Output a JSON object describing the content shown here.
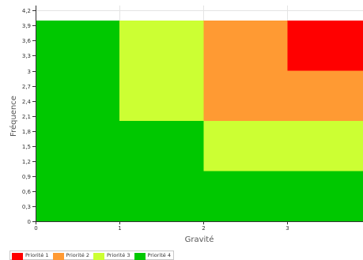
{
  "chart_data": {
    "type": "heatmap",
    "title": "",
    "xlabel": "Gravité",
    "ylabel": "Fréquence",
    "xlim": [
      0,
      3.9
    ],
    "ylim": [
      0,
      4.3
    ],
    "x_ticks": [
      "0",
      "1",
      "2",
      "3"
    ],
    "y_ticks": [
      "0",
      "0,3",
      "0,6",
      "0,9",
      "1,2",
      "1,5",
      "1,8",
      "2,1",
      "2,4",
      "2,7",
      "3",
      "3,3",
      "3,6",
      "3,9",
      "4,2"
    ],
    "grid": true,
    "legend_position": "bottom-left",
    "series": [
      {
        "name": "Priorité 1",
        "color": "#ff0000"
      },
      {
        "name": "Priorité 2",
        "color": "#ff9a33"
      },
      {
        "name": "Priorité 3",
        "color": "#ccff33"
      },
      {
        "name": "Priorité 4",
        "color": "#00c800"
      }
    ],
    "regions": [
      {
        "priority": "Priorité 4",
        "x": [
          0,
          1
        ],
        "y": [
          0,
          4
        ]
      },
      {
        "priority": "Priorité 4",
        "x": [
          1,
          2
        ],
        "y": [
          0,
          2
        ]
      },
      {
        "priority": "Priorité 3",
        "x": [
          1,
          2
        ],
        "y": [
          2,
          4
        ]
      },
      {
        "priority": "Priorité 4",
        "x": [
          2,
          3.9
        ],
        "y": [
          0,
          1
        ]
      },
      {
        "priority": "Priorité 3",
        "x": [
          2,
          3.9
        ],
        "y": [
          1,
          2
        ]
      },
      {
        "priority": "Priorité 2",
        "x": [
          2,
          3.9
        ],
        "y": [
          2,
          3
        ]
      },
      {
        "priority": "Priorité 2",
        "x": [
          2,
          3
        ],
        "y": [
          3,
          4
        ]
      },
      {
        "priority": "Priorité 1",
        "x": [
          3,
          3.9
        ],
        "y": [
          3,
          4
        ]
      }
    ]
  }
}
